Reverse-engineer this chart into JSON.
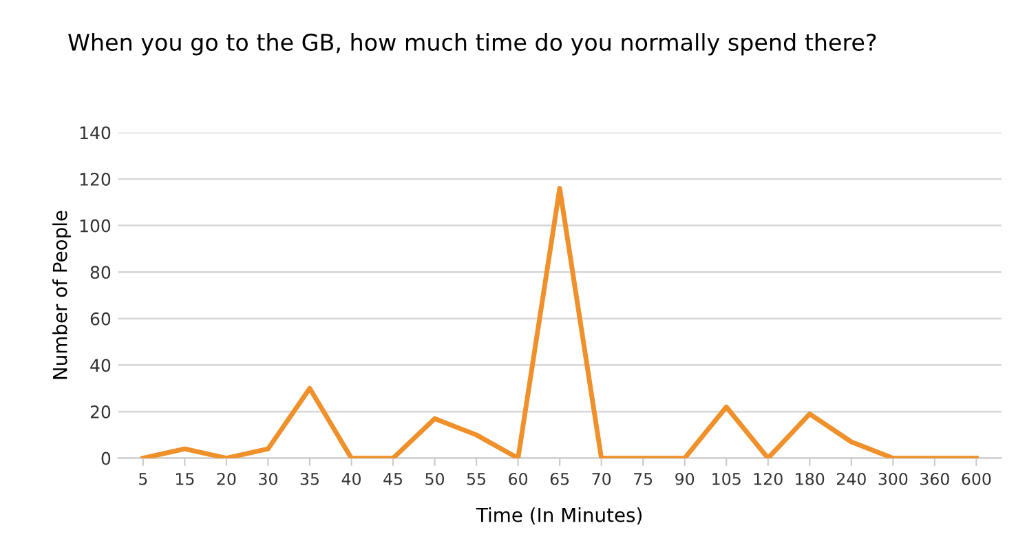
{
  "chart_data": {
    "type": "line",
    "title": "When you go to the GB, how much time do you normally spend there?",
    "xlabel": "Time (In Minutes)",
    "ylabel": "Number of People",
    "categories": [
      "5",
      "15",
      "20",
      "30",
      "35",
      "40",
      "45",
      "50",
      "55",
      "60",
      "65",
      "70",
      "75",
      "90",
      "105",
      "120",
      "180",
      "240",
      "300",
      "360",
      "600"
    ],
    "series": [
      {
        "color": "#f0902a",
        "values": [
          0,
          4,
          0,
          4,
          30,
          0,
          0,
          17,
          10,
          0,
          116,
          0,
          0,
          0,
          22,
          0,
          19,
          7,
          0,
          0,
          0
        ]
      }
    ],
    "ylim": [
      0,
      140
    ],
    "yticks": [
      0,
      20,
      40,
      60,
      80,
      100,
      120,
      140
    ],
    "grid": "y",
    "marker": "none",
    "line_style": "solid"
  }
}
